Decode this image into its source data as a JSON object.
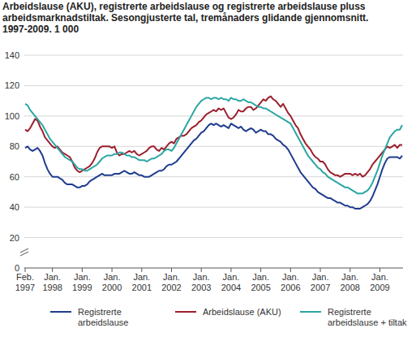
{
  "chart_data": {
    "type": "line",
    "title": "Arbeidslause (AKU), registrerte arbeidslause og registrerte arbeidslause pluss arbeidsmarknadstiltak. Sesongjusterte tal, tremånaders glidande gjennomsnitt. 1997-2009. 1 000",
    "categories": [
      "Feb. 1997",
      null,
      null,
      null,
      null,
      null,
      null,
      null,
      null,
      null,
      null,
      "Jan. 1998",
      null,
      null,
      null,
      null,
      null,
      null,
      null,
      null,
      null,
      null,
      null,
      "Jan. 1999",
      null,
      null,
      null,
      null,
      null,
      null,
      null,
      null,
      null,
      null,
      null,
      "Jan. 2000",
      null,
      null,
      null,
      null,
      null,
      null,
      null,
      null,
      null,
      null,
      null,
      "Jan. 2001",
      null,
      null,
      null,
      null,
      null,
      null,
      null,
      null,
      null,
      null,
      null,
      "Jan. 2002",
      null,
      null,
      null,
      null,
      null,
      null,
      null,
      null,
      null,
      null,
      null,
      "Jan. 2003",
      null,
      null,
      null,
      null,
      null,
      null,
      null,
      null,
      null,
      null,
      null,
      "Jan. 2004",
      null,
      null,
      null,
      null,
      null,
      null,
      null,
      null,
      null,
      null,
      null,
      "Jan. 2005",
      null,
      null,
      null,
      null,
      null,
      null,
      null,
      null,
      null,
      null,
      null,
      "Jan. 2006",
      null,
      null,
      null,
      null,
      null,
      null,
      null,
      null,
      null,
      null,
      null,
      "Jan. 2007",
      null,
      null,
      null,
      null,
      null,
      null,
      null,
      null,
      null,
      null,
      null,
      "Jan. 2008",
      null,
      null,
      null,
      null,
      null,
      null,
      null,
      null,
      null,
      null,
      null,
      "Jan. 2009",
      null,
      null,
      null,
      null,
      null,
      null,
      null,
      null,
      null
    ],
    "series": [
      {
        "name": "Registrerte arbeidslause",
        "color": "#1f3c8f",
        "values": [
          79,
          80,
          78,
          77,
          78,
          79,
          77,
          74,
          69,
          65,
          62,
          60,
          60,
          60,
          59,
          58,
          56,
          55,
          55,
          55,
          54,
          53,
          53,
          54,
          54,
          55,
          57,
          58,
          59,
          60,
          61,
          62,
          61,
          61,
          61,
          61,
          62,
          62,
          62,
          63,
          64,
          63,
          62,
          62,
          63,
          62,
          61,
          61,
          60,
          60,
          60,
          61,
          62,
          63,
          64,
          64,
          65,
          67,
          68,
          68,
          69,
          70,
          72,
          74,
          76,
          78,
          80,
          82,
          84,
          85,
          87,
          89,
          90,
          92,
          94,
          95,
          94,
          95,
          94,
          93,
          94,
          93,
          92,
          95,
          94,
          93,
          92,
          93,
          91,
          90,
          91,
          92,
          91,
          89,
          90,
          91,
          90,
          90,
          88,
          88,
          87,
          85,
          84,
          83,
          81,
          80,
          78,
          75,
          72,
          69,
          66,
          63,
          61,
          59,
          57,
          55,
          53,
          52,
          50,
          49,
          48,
          47,
          46,
          46,
          45,
          44,
          43,
          43,
          42,
          41,
          41,
          40,
          40,
          39,
          39,
          39,
          40,
          41,
          42,
          44,
          47,
          51,
          55,
          60,
          65,
          69,
          72,
          73,
          73,
          73,
          73,
          72,
          74
        ]
      },
      {
        "name": "Arbeidslause (AKU)",
        "color": "#9c1f2e",
        "values": [
          91,
          90,
          92,
          95,
          98,
          97,
          93,
          90,
          86,
          84,
          82,
          80,
          79,
          80,
          78,
          76,
          75,
          74,
          73,
          70,
          66,
          64,
          63,
          64,
          65,
          66,
          67,
          69,
          72,
          76,
          79,
          80,
          80,
          80,
          80,
          79,
          80,
          76,
          74,
          75,
          75,
          76,
          77,
          76,
          77,
          75,
          74,
          75,
          76,
          77,
          79,
          80,
          80,
          78,
          77,
          79,
          78,
          80,
          82,
          83,
          82,
          85,
          86,
          87,
          87,
          88,
          90,
          92,
          93,
          94,
          96,
          97,
          99,
          101,
          102,
          103,
          104,
          103,
          105,
          104,
          105,
          102,
          99,
          98,
          99,
          101,
          104,
          103,
          103,
          105,
          106,
          106,
          104,
          105,
          107,
          109,
          111,
          110,
          112,
          113,
          111,
          110,
          108,
          106,
          108,
          105,
          102,
          100,
          97,
          94,
          92,
          88,
          85,
          82,
          80,
          78,
          75,
          73,
          72,
          70,
          70,
          68,
          65,
          63,
          62,
          61,
          61,
          60,
          61,
          62,
          62,
          62,
          61,
          62,
          61,
          62,
          60,
          61,
          63,
          65,
          68,
          70,
          72,
          74,
          76,
          78,
          80,
          79,
          80,
          81,
          79,
          81,
          81
        ]
      },
      {
        "name": "Registrerte arbeidslause + tiltak",
        "color": "#2aa6a4",
        "values": [
          108,
          107,
          104,
          102,
          100,
          98,
          96,
          94,
          91,
          88,
          85,
          83,
          81,
          79,
          77,
          75,
          73,
          72,
          71,
          70,
          68,
          66,
          65,
          65,
          64,
          64,
          65,
          66,
          67,
          68,
          70,
          72,
          73,
          74,
          74,
          74,
          75,
          75,
          76,
          76,
          75,
          74,
          74,
          73,
          73,
          72,
          71,
          71,
          71,
          70,
          71,
          72,
          72,
          73,
          74,
          75,
          77,
          78,
          78,
          77,
          79,
          82,
          85,
          88,
          91,
          94,
          97,
          100,
          103,
          106,
          108,
          110,
          111,
          112,
          112,
          111,
          112,
          112,
          111,
          112,
          111,
          111,
          110,
          112,
          111,
          111,
          110,
          110,
          111,
          110,
          109,
          109,
          108,
          107,
          106,
          106,
          105,
          105,
          104,
          103,
          102,
          101,
          100,
          99,
          98,
          97,
          96,
          95,
          92,
          89,
          86,
          83,
          80,
          77,
          74,
          72,
          70,
          68,
          66,
          65,
          63,
          62,
          60,
          59,
          58,
          57,
          56,
          55,
          54,
          53,
          53,
          52,
          51,
          50,
          49,
          49,
          49,
          50,
          51,
          53,
          56,
          60,
          64,
          69,
          74,
          78,
          82,
          86,
          88,
          90,
          91,
          91,
          94
        ]
      }
    ],
    "ylim": [
      0,
      140
    ],
    "yticks": [
      0,
      20,
      40,
      60,
      80,
      100,
      120,
      140
    ],
    "grid": true,
    "legend": "bottom"
  }
}
